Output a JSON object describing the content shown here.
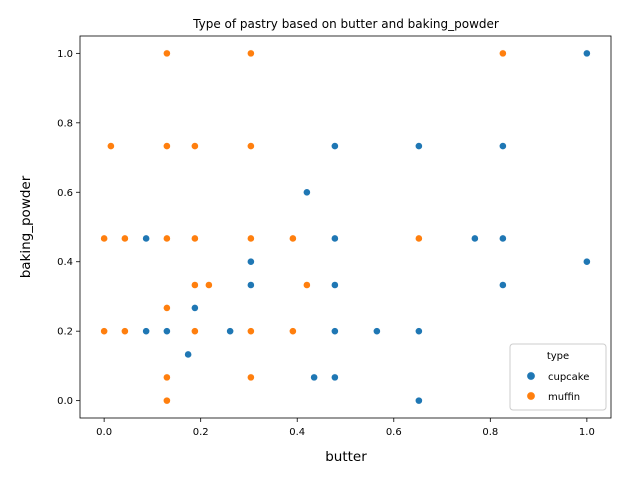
{
  "chart_data": {
    "type": "scatter",
    "title": "Type of pastry based on butter and baking_powder",
    "xlabel": "butter",
    "ylabel": "baking_powder",
    "xlim": [
      -0.05,
      1.05
    ],
    "ylim": [
      -0.05,
      1.05
    ],
    "xticks": [
      "0.0",
      "0.2",
      "0.4",
      "0.6",
      "0.8",
      "1.0"
    ],
    "yticks": [
      "0.0",
      "0.2",
      "0.4",
      "0.6",
      "0.8",
      "1.0"
    ],
    "grid": false,
    "legend": {
      "title": "type",
      "placement": "bottom-right"
    },
    "series": [
      {
        "name": "cupcake",
        "color": "#1f77b4",
        "points": [
          [
            1.0,
            1.0
          ],
          [
            1.0,
            0.4
          ],
          [
            0.826,
            0.733
          ],
          [
            0.826,
            0.467
          ],
          [
            0.826,
            0.333
          ],
          [
            0.768,
            0.467
          ],
          [
            0.652,
            0.733
          ],
          [
            0.652,
            0.2
          ],
          [
            0.652,
            0.0
          ],
          [
            0.565,
            0.2
          ],
          [
            0.478,
            0.733
          ],
          [
            0.478,
            0.467
          ],
          [
            0.478,
            0.333
          ],
          [
            0.478,
            0.2
          ],
          [
            0.478,
            0.067
          ],
          [
            0.435,
            0.067
          ],
          [
            0.42,
            0.6
          ],
          [
            0.304,
            0.4
          ],
          [
            0.304,
            0.333
          ],
          [
            0.261,
            0.2
          ],
          [
            0.188,
            0.267
          ],
          [
            0.174,
            0.133
          ],
          [
            0.13,
            0.2
          ],
          [
            0.087,
            0.467
          ],
          [
            0.087,
            0.2
          ]
        ]
      },
      {
        "name": "muffin",
        "color": "#ff7f0e",
        "points": [
          [
            0.826,
            1.0
          ],
          [
            0.652,
            0.467
          ],
          [
            0.42,
            0.333
          ],
          [
            0.391,
            0.467
          ],
          [
            0.391,
            0.2
          ],
          [
            0.304,
            1.0
          ],
          [
            0.304,
            0.733
          ],
          [
            0.304,
            0.467
          ],
          [
            0.304,
            0.2
          ],
          [
            0.304,
            0.067
          ],
          [
            0.217,
            0.333
          ],
          [
            0.188,
            0.733
          ],
          [
            0.188,
            0.467
          ],
          [
            0.188,
            0.333
          ],
          [
            0.188,
            0.2
          ],
          [
            0.13,
            1.0
          ],
          [
            0.13,
            0.733
          ],
          [
            0.13,
            0.467
          ],
          [
            0.13,
            0.267
          ],
          [
            0.13,
            0.067
          ],
          [
            0.13,
            0.0
          ],
          [
            0.043,
            0.467
          ],
          [
            0.043,
            0.2
          ],
          [
            0.014,
            0.733
          ],
          [
            0.0,
            0.467
          ],
          [
            0.0,
            0.2
          ]
        ]
      }
    ]
  }
}
